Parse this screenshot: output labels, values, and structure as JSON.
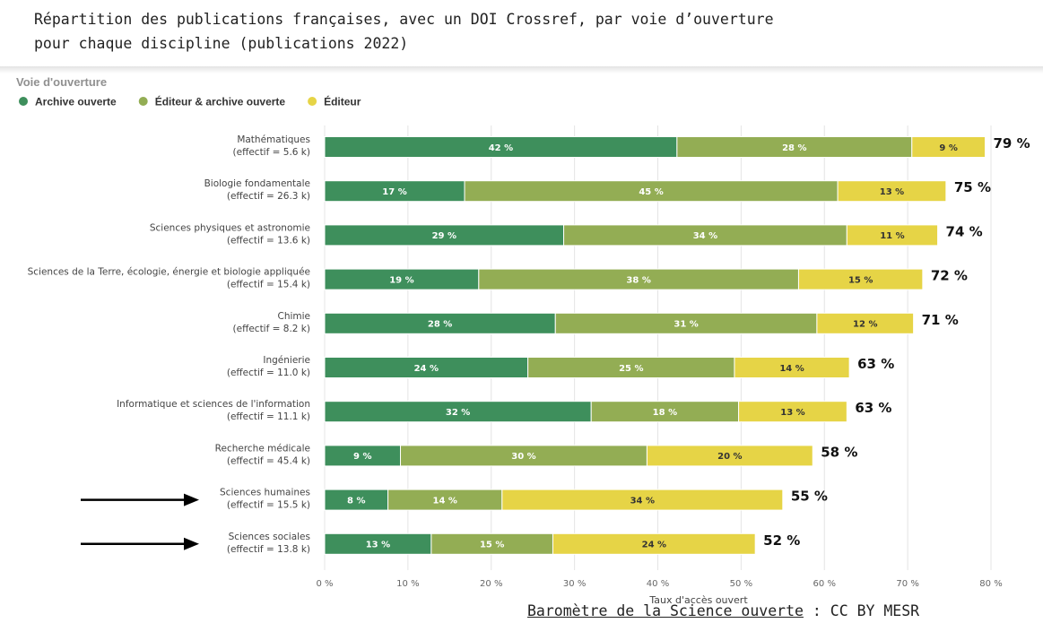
{
  "caption": "Répartition des publications françaises, avec un DOI Crossref, par voie d’ouverture\npour chaque discipline (publications 2022)",
  "credit": {
    "link": "Baromètre de la Science ouverte",
    "sep": " : ",
    "license": "CC BY MESR"
  },
  "colors": {
    "Archive ouverte": "#3e8f5c",
    "Éditeur & archive ouverte": "#93ad54",
    "Éditeur": "#e6d446",
    "arrow": "#000000"
  },
  "chart_data": {
    "type": "bar",
    "orientation": "horizontal",
    "stacked": true,
    "legend_title": "Voie d'ouverture",
    "legend_placement": "top-left",
    "xlabel": "Taux d'accès ouvert",
    "xlim": [
      0,
      80
    ],
    "xticks": [
      "0 %",
      "10 %",
      "20 %",
      "30 %",
      "40 %",
      "50 %",
      "60 %",
      "70 %",
      "80 %"
    ],
    "grid": true,
    "categories": [
      {
        "name": "Mathématiques",
        "effectif": "(effectif = 5.6 k)",
        "total": 79,
        "arrow": false
      },
      {
        "name": "Biologie fondamentale",
        "effectif": "(effectif = 26.3 k)",
        "total": 75,
        "arrow": false
      },
      {
        "name": "Sciences physiques et astronomie",
        "effectif": "(effectif = 13.6 k)",
        "total": 74,
        "arrow": false
      },
      {
        "name": "Sciences de la Terre, écologie, énergie et biologie appliquée",
        "effectif": "(effectif = 15.4 k)",
        "total": 72,
        "arrow": false
      },
      {
        "name": "Chimie",
        "effectif": "(effectif = 8.2 k)",
        "total": 71,
        "arrow": false
      },
      {
        "name": "Ingénierie",
        "effectif": "(effectif = 11.0 k)",
        "total": 63,
        "arrow": false
      },
      {
        "name": "Informatique et sciences de l'information",
        "effectif": "(effectif = 11.1 k)",
        "total": 63,
        "arrow": false
      },
      {
        "name": "Recherche médicale",
        "effectif": "(effectif = 45.4 k)",
        "total": 58,
        "arrow": false
      },
      {
        "name": "Sciences humaines",
        "effectif": "(effectif = 15.5 k)",
        "total": 55,
        "arrow": true
      },
      {
        "name": "Sciences sociales",
        "effectif": "(effectif = 13.8 k)",
        "total": 52,
        "arrow": true
      }
    ],
    "series": [
      {
        "name": "Archive ouverte",
        "values": [
          42.3,
          16.8,
          28.7,
          18.5,
          27.7,
          24.4,
          32.0,
          9.1,
          7.6,
          12.8
        ]
      },
      {
        "name": "Éditeur & archive ouverte",
        "values": [
          28.2,
          44.8,
          34.0,
          38.4,
          31.4,
          24.8,
          17.7,
          29.6,
          13.7,
          14.6
        ]
      },
      {
        "name": "Éditeur",
        "values": [
          8.8,
          13.0,
          10.9,
          14.9,
          11.6,
          13.8,
          13.0,
          19.9,
          33.7,
          24.3
        ]
      }
    ]
  }
}
